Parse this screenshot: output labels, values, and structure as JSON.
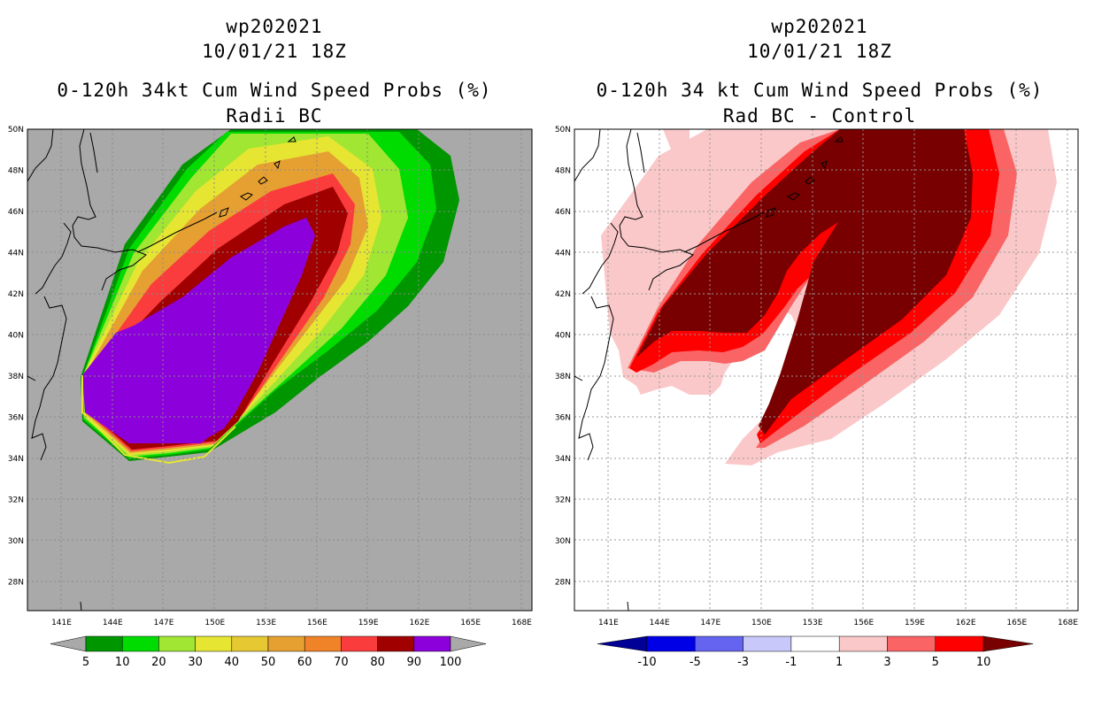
{
  "colors": {
    "land_gray": "#a9a9a9",
    "prob": [
      "#009600",
      "#00dc00",
      "#a0e632",
      "#e6e632",
      "#e6c832",
      "#e6a032",
      "#f08228",
      "#fa3c3c",
      "#a00000",
      "#8c00dc"
    ],
    "diff": [
      "#000096",
      "#0000e6",
      "#6464f0",
      "#c8c8fa",
      "#ffffff",
      "#fac8c8",
      "#fa6464",
      "#ff0000",
      "#780000"
    ]
  },
  "left": {
    "title_lines": [
      "wp202021",
      "10/01/21 18Z",
      "0-120h 34kt Cum Wind Speed Probs (%)",
      "Radii BC"
    ],
    "colorbar_labels": [
      "5",
      "10",
      "20",
      "30",
      "40",
      "50",
      "60",
      "70",
      "80",
      "90",
      "100"
    ]
  },
  "right": {
    "title_lines": [
      "wp202021",
      "10/01/21 18Z",
      "0-120h 34 kt Cum Wind Speed Probs (%)",
      "Rad BC - Control"
    ],
    "colorbar_labels": [
      "-10",
      "-5",
      "-3",
      "-1",
      "1",
      "3",
      "5",
      "10"
    ]
  },
  "axes": {
    "lon_labels": [
      "141E",
      "144E",
      "147E",
      "150E",
      "153E",
      "156E",
      "159E",
      "162E",
      "165E",
      "168E"
    ],
    "lat_labels": [
      "28N",
      "30N",
      "32N",
      "34N",
      "36N",
      "38N",
      "40N",
      "42N",
      "44N",
      "46N",
      "48N",
      "50N"
    ]
  }
}
